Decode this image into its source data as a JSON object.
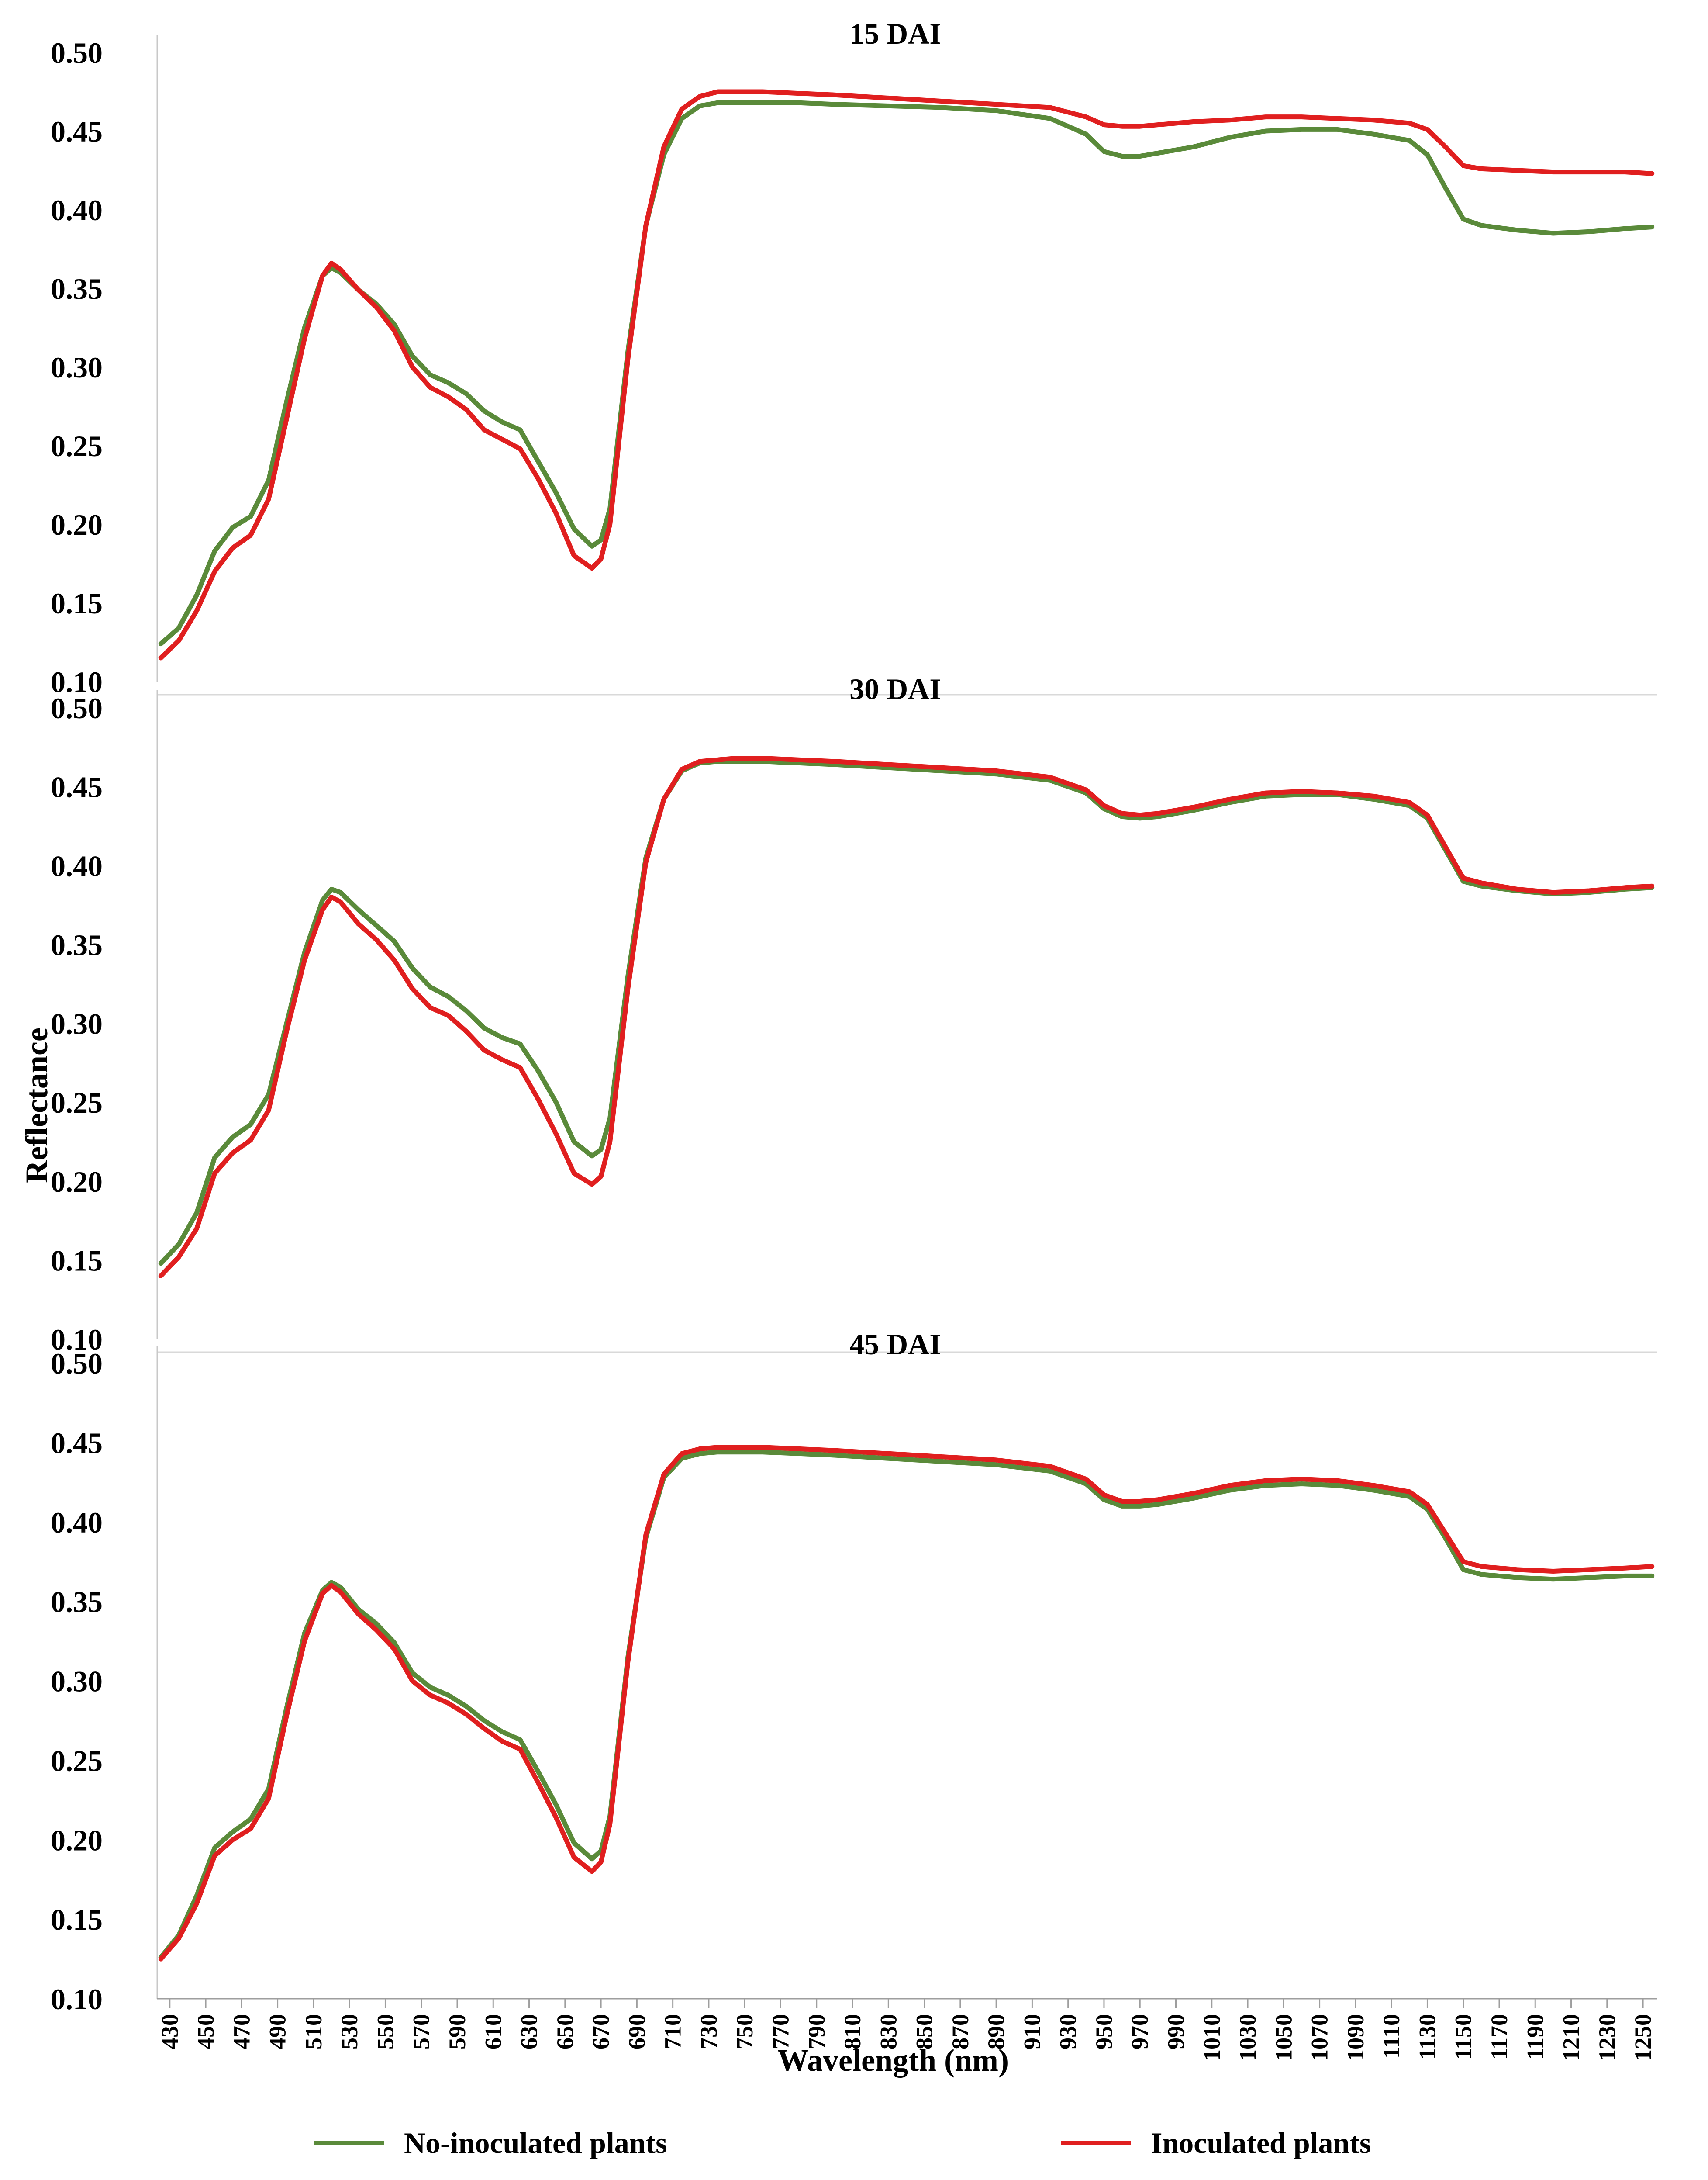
{
  "chart_data": {
    "type": "line",
    "ylabel": "Reflectance",
    "xlabel": "Wavelength (nm)",
    "ylim": [
      0.1,
      0.5
    ],
    "yticks": [
      "0.50",
      "0.45",
      "0.40",
      "0.35",
      "0.30",
      "0.25",
      "0.20",
      "0.15",
      "0.10"
    ],
    "xlim": [
      423,
      1258
    ],
    "xticks": [
      "430",
      "450",
      "470",
      "490",
      "510",
      "530",
      "550",
      "570",
      "590",
      "610",
      "630",
      "650",
      "670",
      "690",
      "710",
      "730",
      "750",
      "770",
      "790",
      "810",
      "830",
      "850",
      "870",
      "890",
      "910",
      "930",
      "950",
      "970",
      "990",
      "1010",
      "1030",
      "1050",
      "1070",
      "1090",
      "1110",
      "1130",
      "1150",
      "1170",
      "1190",
      "1210",
      "1230",
      "1250"
    ],
    "legend": {
      "placement": "bottom",
      "entries": [
        {
          "label": "No-inoculated plants",
          "color": "#5a8a3a"
        },
        {
          "label": "Inoculated plants",
          "color": "#e01f1f"
        }
      ]
    },
    "x": [
      425,
      435,
      445,
      455,
      465,
      475,
      485,
      495,
      505,
      515,
      520,
      525,
      535,
      545,
      555,
      565,
      575,
      585,
      595,
      605,
      615,
      625,
      635,
      645,
      655,
      665,
      670,
      675,
      685,
      695,
      705,
      715,
      725,
      735,
      745,
      760,
      780,
      800,
      830,
      860,
      890,
      920,
      940,
      950,
      960,
      970,
      980,
      1000,
      1020,
      1040,
      1060,
      1080,
      1100,
      1120,
      1130,
      1140,
      1150,
      1160,
      1180,
      1200,
      1220,
      1240,
      1255
    ],
    "panels": [
      {
        "title": "15 DAI",
        "series": [
          {
            "name": "No-inoculated plants",
            "color": "#5a8a3a",
            "values": [
              0.124,
              0.134,
              0.155,
              0.183,
              0.198,
              0.205,
              0.228,
              0.278,
              0.325,
              0.358,
              0.363,
              0.36,
              0.349,
              0.34,
              0.327,
              0.307,
              0.295,
              0.29,
              0.283,
              0.272,
              0.265,
              0.26,
              0.24,
              0.22,
              0.197,
              0.186,
              0.19,
              0.21,
              0.31,
              0.39,
              0.435,
              0.458,
              0.466,
              0.468,
              0.468,
              0.468,
              0.468,
              0.467,
              0.466,
              0.465,
              0.463,
              0.458,
              0.448,
              0.437,
              0.434,
              0.434,
              0.436,
              0.44,
              0.446,
              0.45,
              0.451,
              0.451,
              0.448,
              0.444,
              0.435,
              0.414,
              0.394,
              0.39,
              0.387,
              0.385,
              0.386,
              0.388,
              0.389
            ]
          },
          {
            "name": "Inoculated plants",
            "color": "#e01f1f",
            "values": [
              0.115,
              0.126,
              0.145,
              0.17,
              0.185,
              0.193,
              0.216,
              0.267,
              0.318,
              0.358,
              0.366,
              0.362,
              0.349,
              0.338,
              0.323,
              0.3,
              0.287,
              0.281,
              0.273,
              0.26,
              0.254,
              0.248,
              0.229,
              0.207,
              0.18,
              0.172,
              0.178,
              0.2,
              0.305,
              0.39,
              0.44,
              0.464,
              0.472,
              0.475,
              0.475,
              0.475,
              0.474,
              0.473,
              0.471,
              0.469,
              0.467,
              0.465,
              0.459,
              0.454,
              0.453,
              0.453,
              0.454,
              0.456,
              0.457,
              0.459,
              0.459,
              0.458,
              0.457,
              0.455,
              0.451,
              0.44,
              0.428,
              0.426,
              0.425,
              0.424,
              0.424,
              0.424,
              0.423
            ]
          }
        ]
      },
      {
        "title": "30 DAI",
        "series": [
          {
            "name": "No-inoculated plants",
            "color": "#5a8a3a",
            "values": [
              0.148,
              0.16,
              0.18,
              0.215,
              0.228,
              0.236,
              0.255,
              0.3,
              0.345,
              0.378,
              0.385,
              0.383,
              0.372,
              0.362,
              0.352,
              0.335,
              0.323,
              0.317,
              0.308,
              0.297,
              0.291,
              0.287,
              0.27,
              0.25,
              0.225,
              0.216,
              0.22,
              0.24,
              0.33,
              0.405,
              0.442,
              0.46,
              0.465,
              0.466,
              0.466,
              0.466,
              0.465,
              0.464,
              0.462,
              0.46,
              0.458,
              0.454,
              0.446,
              0.436,
              0.431,
              0.43,
              0.431,
              0.435,
              0.44,
              0.444,
              0.445,
              0.445,
              0.442,
              0.438,
              0.43,
              0.41,
              0.39,
              0.387,
              0.384,
              0.382,
              0.383,
              0.385,
              0.386
            ]
          },
          {
            "name": "Inoculated plants",
            "color": "#e01f1f",
            "values": [
              0.14,
              0.152,
              0.17,
              0.205,
              0.218,
              0.226,
              0.245,
              0.295,
              0.34,
              0.372,
              0.38,
              0.377,
              0.363,
              0.353,
              0.34,
              0.322,
              0.31,
              0.305,
              0.295,
              0.283,
              0.277,
              0.272,
              0.252,
              0.23,
              0.205,
              0.198,
              0.203,
              0.225,
              0.322,
              0.402,
              0.442,
              0.461,
              0.466,
              0.467,
              0.468,
              0.468,
              0.467,
              0.466,
              0.464,
              0.462,
              0.46,
              0.456,
              0.448,
              0.438,
              0.433,
              0.432,
              0.433,
              0.437,
              0.442,
              0.446,
              0.447,
              0.446,
              0.444,
              0.44,
              0.432,
              0.412,
              0.392,
              0.389,
              0.385,
              0.383,
              0.384,
              0.386,
              0.387
            ]
          }
        ]
      },
      {
        "title": "45 DAI",
        "series": [
          {
            "name": "No-inoculated plants",
            "color": "#5a8a3a",
            "values": [
              0.126,
              0.14,
              0.165,
              0.195,
              0.205,
              0.213,
              0.232,
              0.283,
              0.33,
              0.357,
              0.362,
              0.359,
              0.345,
              0.336,
              0.324,
              0.305,
              0.296,
              0.291,
              0.284,
              0.275,
              0.268,
              0.263,
              0.243,
              0.222,
              0.198,
              0.188,
              0.193,
              0.215,
              0.315,
              0.39,
              0.428,
              0.44,
              0.443,
              0.444,
              0.444,
              0.444,
              0.443,
              0.442,
              0.44,
              0.438,
              0.436,
              0.432,
              0.424,
              0.414,
              0.41,
              0.41,
              0.411,
              0.415,
              0.42,
              0.423,
              0.424,
              0.423,
              0.42,
              0.416,
              0.408,
              0.39,
              0.37,
              0.367,
              0.365,
              0.364,
              0.365,
              0.366,
              0.366
            ]
          },
          {
            "name": "Inoculated plants",
            "color": "#e01f1f",
            "values": [
              0.125,
              0.138,
              0.16,
              0.19,
              0.2,
              0.207,
              0.226,
              0.278,
              0.325,
              0.355,
              0.36,
              0.356,
              0.342,
              0.332,
              0.32,
              0.3,
              0.291,
              0.286,
              0.279,
              0.27,
              0.262,
              0.257,
              0.236,
              0.214,
              0.189,
              0.18,
              0.186,
              0.21,
              0.312,
              0.392,
              0.43,
              0.443,
              0.446,
              0.447,
              0.447,
              0.447,
              0.446,
              0.445,
              0.443,
              0.441,
              0.439,
              0.435,
              0.427,
              0.417,
              0.413,
              0.413,
              0.414,
              0.418,
              0.423,
              0.426,
              0.427,
              0.426,
              0.423,
              0.419,
              0.411,
              0.393,
              0.375,
              0.372,
              0.37,
              0.369,
              0.37,
              0.371,
              0.372
            ]
          }
        ]
      }
    ]
  }
}
